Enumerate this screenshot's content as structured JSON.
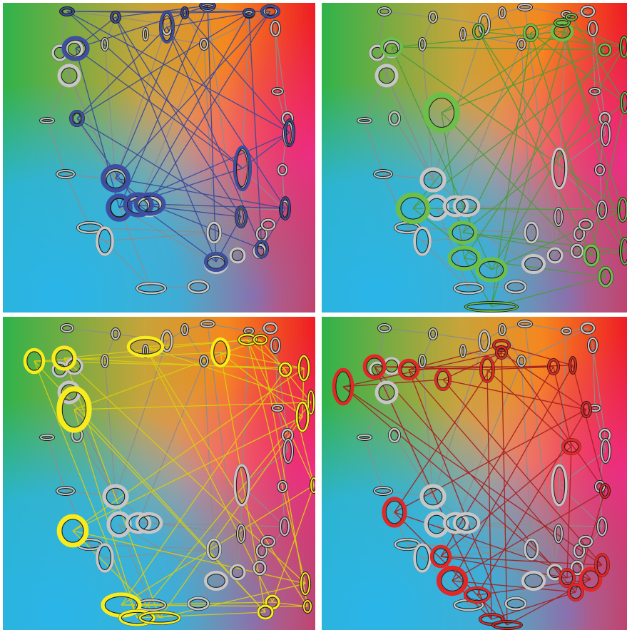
{
  "panels": [
    {
      "id": "blue",
      "accent": "#3c4fa3",
      "edge": "#3a4a9a"
    },
    {
      "id": "green",
      "accent": "#6cc04a",
      "edge": "#4e9a3a"
    },
    {
      "id": "yellow",
      "accent": "#f8ec1c",
      "edge": "#d8cc10"
    },
    {
      "id": "red",
      "accent": "#e32626",
      "edge": "#a82020"
    }
  ],
  "node_fill_gray": "#c6c6c6",
  "edge_gray": "#8c8c8c",
  "background_gradient": [
    "#2fb34a",
    "#f5871f",
    "#ee1c25",
    "#ec2f8a",
    "#9b5fa8",
    "#2ab4e9"
  ]
}
